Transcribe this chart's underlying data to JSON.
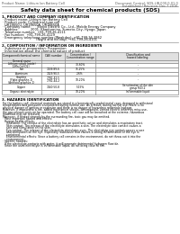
{
  "bg_color": "#ffffff",
  "header_left": "Product Name: Lithium Ion Battery Cell",
  "header_right_line1": "Document Control: SDS-LIB-000-0-01-0",
  "header_right_line2": "Established / Revision: Dec.7.2016",
  "title": "Safety data sheet for chemical products (SDS)",
  "section1_header": "1. PRODUCT AND COMPANY IDENTIFICATION",
  "section1_lines": [
    "· Product name: Lithium Ion Battery Cell",
    "· Product code: Cylindrical-type cell",
    "  UR18650U, UR18650A, UR18650A",
    "· Company name:      Sanyo Electric Co., Ltd., Mobile Energy Company",
    "· Address:            2001, Kamitomino, Sumoto-City, Hyogo, Japan",
    "· Telephone number:  +81-799-26-4111",
    "· Fax number:  +81-799-26-4129",
    "· Emergency telephone number (Weekday): +81-799-26-3962",
    "                                 (Night and holiday): +81-799-26-4101"
  ],
  "section2_header": "2. COMPOSITION / INFORMATION ON INGREDIENTS",
  "section2_intro": "· Substance or preparation: Preparation",
  "section2_table_header": "· Information about the chemical nature of product",
  "table_col1": "Component/chemical name",
  "table_col2": "CAS number",
  "table_col3": "Concentration /\nConcentration range",
  "table_col4": "Classification and\nhazard labeling",
  "table_subrow1": "General name",
  "table_rows": [
    [
      "Lithium cobalt (oxide)\n(LiMn-Co)(O2)",
      "-",
      "30-60%",
      "-"
    ],
    [
      "Iron",
      "7439-89-6",
      "15-25%",
      "-"
    ],
    [
      "Aluminum",
      "7429-90-5",
      "2-6%",
      "-"
    ],
    [
      "Graphite\n(Flake graphite-1)\n(Artificial graphite-1)",
      "7782-42-5\n7782-44-2",
      "10-20%",
      "-"
    ],
    [
      "Copper",
      "7440-50-8",
      "5-15%",
      "Sensitization of the skin\ngroup R43.2"
    ],
    [
      "Organic electrolyte",
      "-",
      "10-20%",
      "Inflammable liquid"
    ]
  ],
  "section3_header": "3. HAZARDS IDENTIFICATION",
  "section3_text": [
    "For the battery cell, chemical materials are stored in a hermetically-sealed metal case, designed to withstand",
    "temperatures and pressures encountered during normal use. As a result, during normal use, there is no",
    "physical danger of ignition or explosion and there is no danger of hazardous materials leakage.",
    "However, if exposed to a fire, added mechanical shocks, decomposed, vented electric where by miss-use,",
    "the gas release vent can be operated. The battery cell case will be breached at the extreme, hazardous",
    "materials may be released.",
    "Moreover, if heated strongly by the surrounding fire, toxic gas may be emitted.",
    "· Most important hazard and effects:",
    "  Human health effects:",
    "    Inhalation: The release of the electrolyte has an anesthetic action and stimulates a respiratory tract.",
    "    Skin contact: The release of the electrolyte stimulates a skin. The electrolyte skin contact causes a",
    "    sore and stimulation on the skin.",
    "    Eye contact: The release of the electrolyte stimulates eyes. The electrolyte eye contact causes a sore",
    "    and stimulation on the eye. Especially, substance that causes a strong inflammation of the eye is",
    "    contained.",
    "    Environmental effects: Since a battery cell remains in the environment, do not throw out it into the",
    "    environment.",
    "· Specific hazards:",
    "  If the electrolyte contacts with water, it will generate detrimental hydrogen fluoride.",
    "  Since the used electrolyte is inflammable liquid, do not bring close to fire."
  ]
}
